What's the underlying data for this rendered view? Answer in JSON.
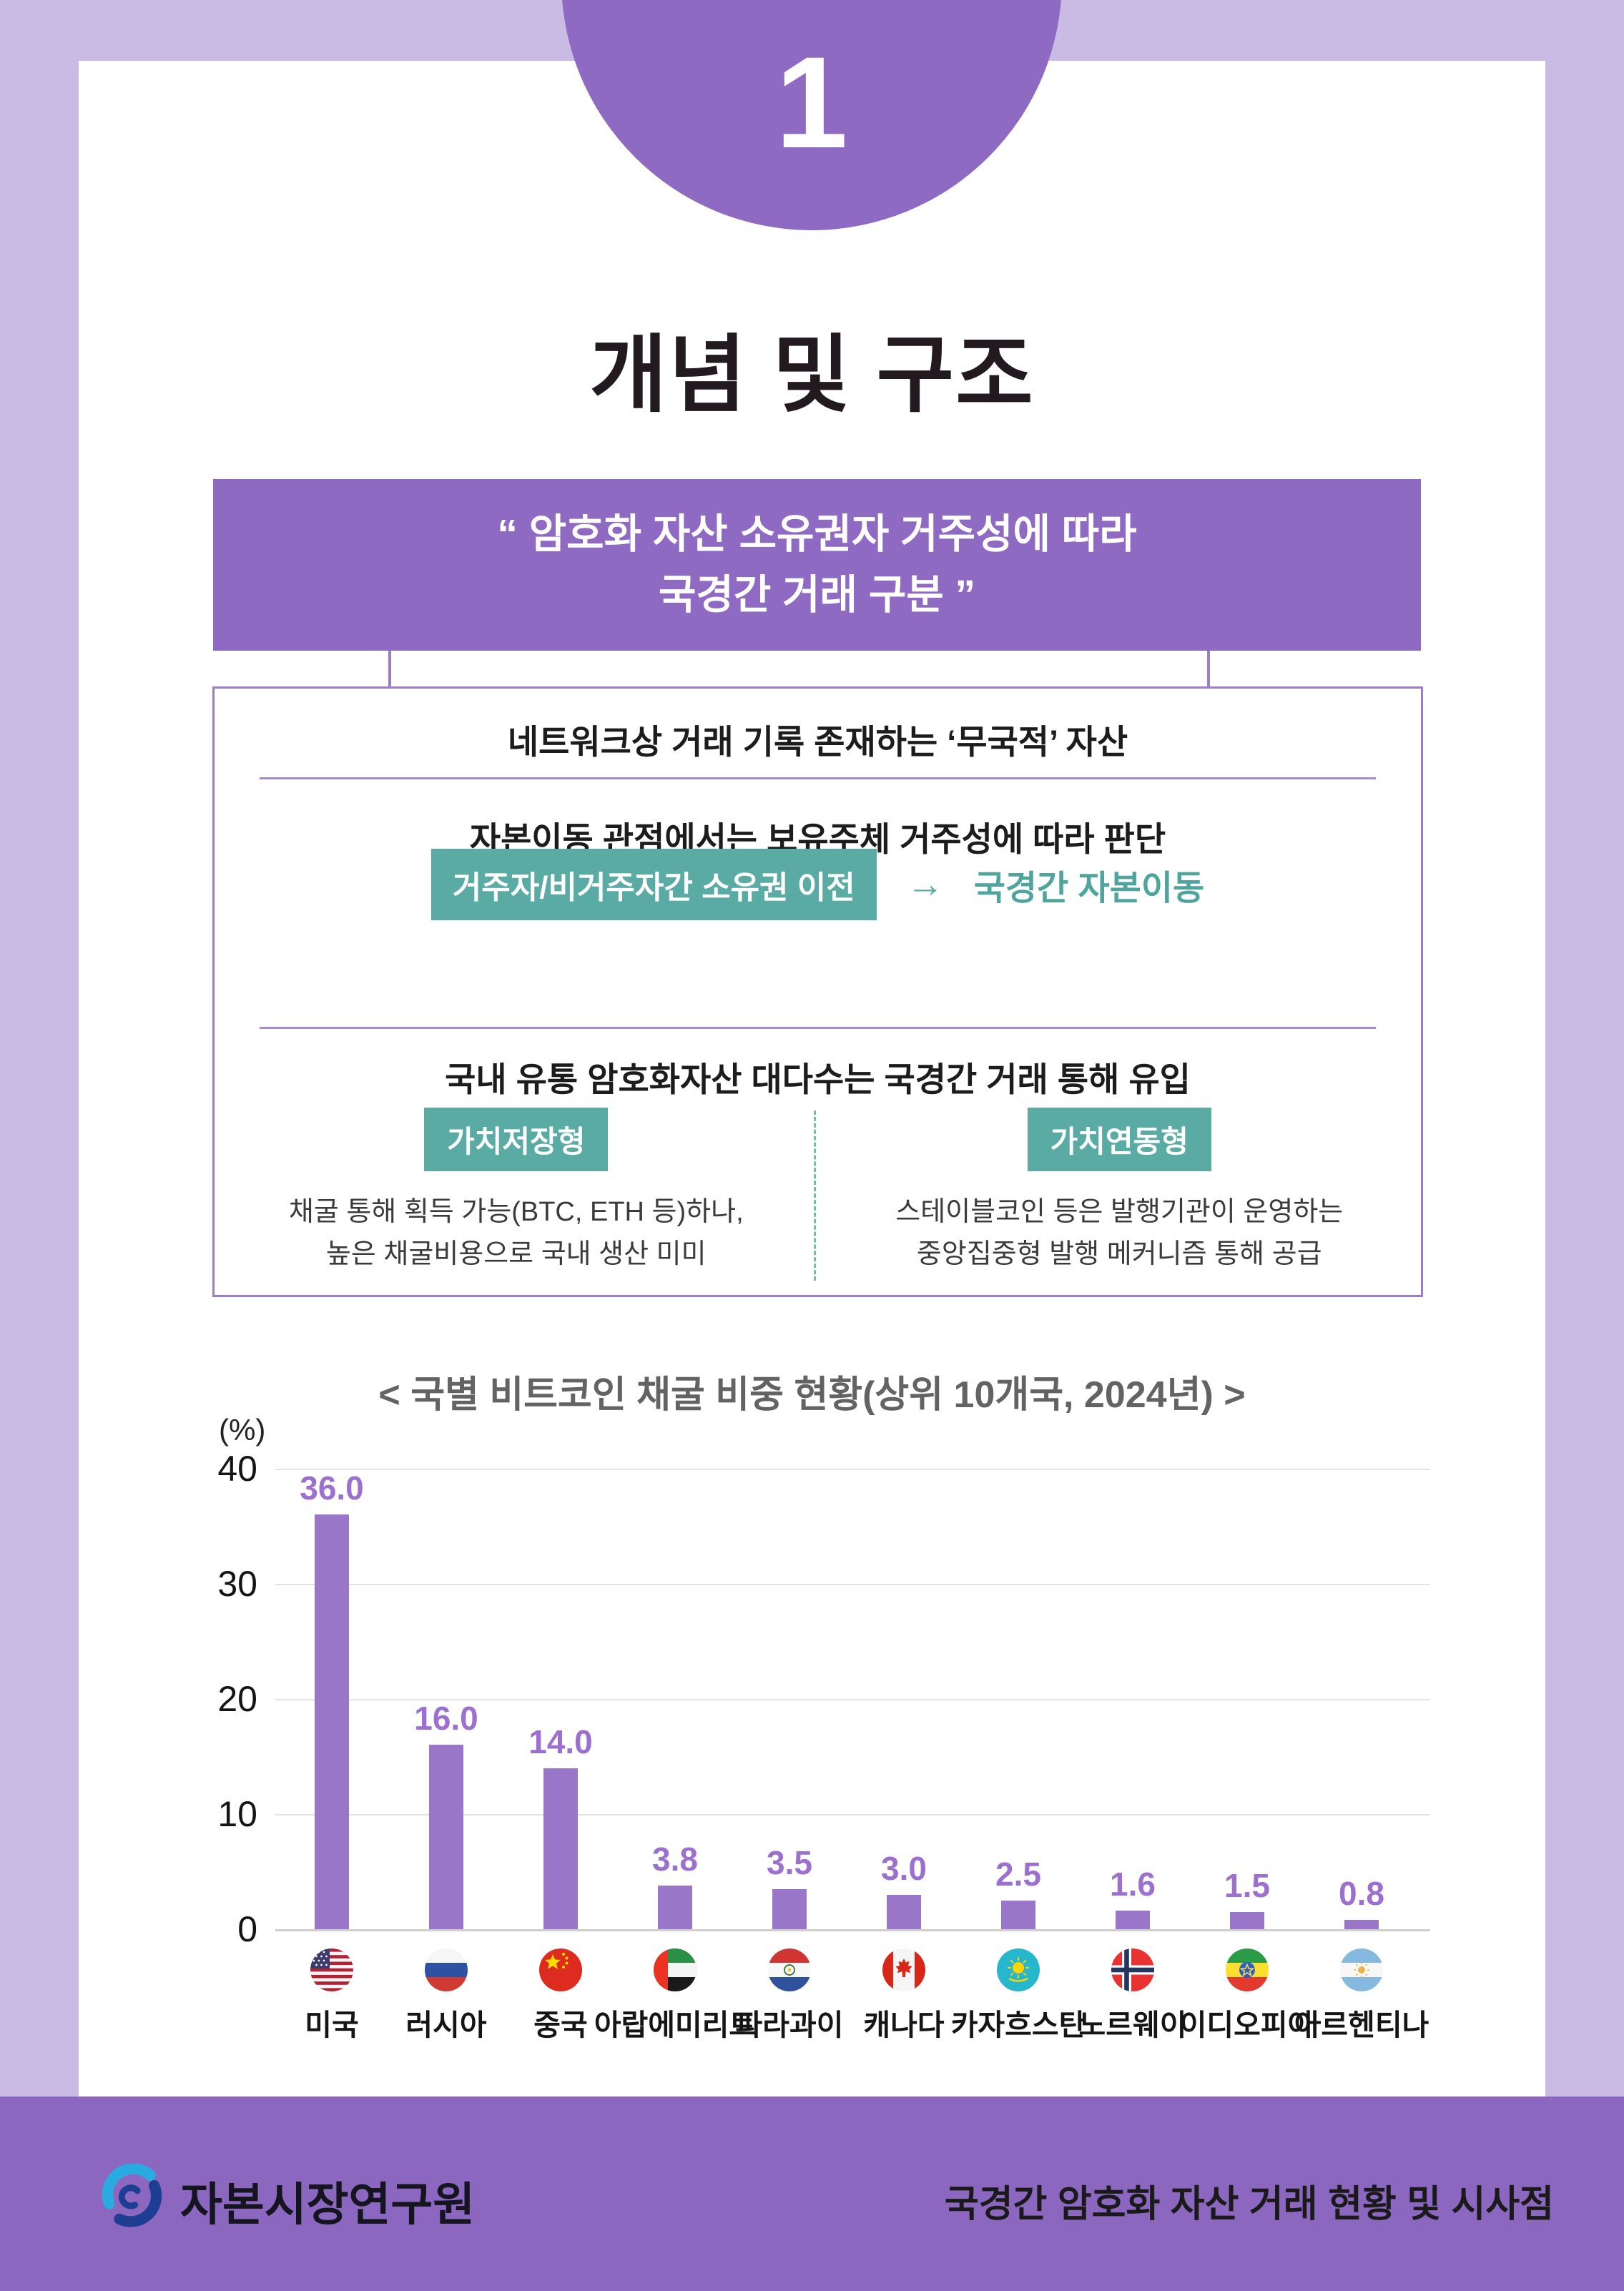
{
  "page": {
    "section_number": "1",
    "title": "개념 및 구조"
  },
  "quote_box": {
    "line1": "“ 암호화 자산 소유권자 거주성에 따라",
    "line2": "국경간 거래 구분 ”"
  },
  "info_box": {
    "row1": "네트워크상 거래 기록 존재하는 ‘무국적’ 자산",
    "row2": "자본이동 관점에서는 보유주체 거주성에 따라 판단",
    "transfer_badge": "거주자/비거주자간 소유권 이전",
    "arrow": "→",
    "transfer_result": "국경간 자본이동",
    "row3": "국내 유통 암호화자산 대다수는 국경간 거래 통해 유입",
    "left_type": {
      "badge": "가치저장형",
      "line1": "채굴 통해 획득 가능(BTC, ETH 등)하나,",
      "line2": "높은 채굴비용으로 국내 생산 미미"
    },
    "right_type": {
      "badge": "가치연동형",
      "line1": "스테이블코인 등은 발행기관이 운영하는",
      "line2": "중앙집중형 발행 메커니즘 통해 공급"
    }
  },
  "chart_data": {
    "type": "bar",
    "title": "< 국별 비트코인 채굴 비중 현황(상위 10개국, 2024년) >",
    "unit_label": "(%)",
    "categories": [
      "미국",
      "러시아",
      "중국",
      "아랍에미리트",
      "파라과이",
      "캐나다",
      "카자흐스탄",
      "노르웨이",
      "이디오피아",
      "아르헨티나"
    ],
    "values": [
      36.0,
      16.0,
      14.0,
      3.8,
      3.5,
      3.0,
      2.5,
      1.6,
      1.5,
      0.8
    ],
    "value_labels": [
      "36.0",
      "16.0",
      "14.0",
      "3.8",
      "3.5",
      "3.0",
      "2.5",
      "1.6",
      "1.5",
      "0.8"
    ],
    "flags": [
      "usa",
      "russia",
      "china",
      "uae",
      "paraguay",
      "canada",
      "kazakhstan",
      "norway",
      "ethiopia",
      "argentina"
    ],
    "yticks": [
      0,
      10,
      20,
      30,
      40
    ],
    "ylim": [
      0,
      40
    ],
    "grid": true,
    "legend": "none",
    "bar_color": "#9a76c8"
  },
  "footer": {
    "org": "자본시장연구원",
    "doc_title": "국경간 암호화 자산 거래 현황 및 시사점"
  },
  "colors": {
    "lavender_bg": "#c9bbe3",
    "accent_purple": "#8f6ac3",
    "bar_purple": "#9a76c8",
    "value_label_purple": "#9c70cf",
    "teal": "#5aaba4",
    "footer_purple": "#8c67c0",
    "chart_title_gray": "#636363"
  }
}
